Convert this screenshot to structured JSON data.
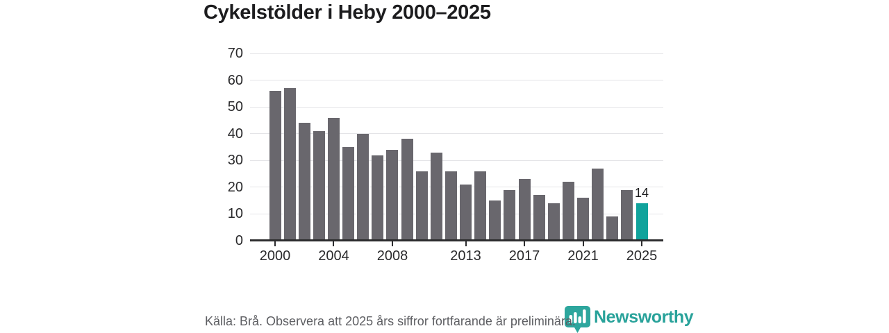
{
  "title": "Cykelstölder i Heby 2000–2025",
  "chart_data": {
    "type": "bar",
    "x": [
      2000,
      2001,
      2002,
      2003,
      2004,
      2005,
      2006,
      2007,
      2008,
      2009,
      2010,
      2011,
      2012,
      2013,
      2014,
      2015,
      2016,
      2017,
      2018,
      2019,
      2020,
      2021,
      2022,
      2023,
      2024,
      2025
    ],
    "values": [
      56,
      57,
      44,
      41,
      46,
      35,
      40,
      32,
      34,
      38,
      26,
      33,
      26,
      21,
      26,
      15,
      19,
      23,
      17,
      14,
      22,
      16,
      27,
      9,
      19,
      14
    ],
    "title": "Cykelstölder i Heby 2000–2025",
    "xlabel": "",
    "ylabel": "",
    "ylim": [
      0,
      70
    ],
    "yticks": [
      0,
      10,
      20,
      30,
      40,
      50,
      60,
      70
    ],
    "xtick_labels": [
      "2000",
      "2004",
      "2008",
      "2013",
      "2017",
      "2021",
      "2025"
    ],
    "xtick_indices": [
      0,
      4,
      8,
      13,
      17,
      21,
      25
    ],
    "grid": "horizontal",
    "legend": "none",
    "bar_color": "#69676d",
    "highlight_index": 25,
    "highlight_color": "#10a39c",
    "annotation": {
      "index": 25,
      "text": "14"
    }
  },
  "footer": {
    "source_text": "Källa: Brå. Observera att 2025 års siffror fortfarande är preliminära."
  },
  "logo": {
    "wordmark": "Newsworthy",
    "color": "#28a29a",
    "icon": "newsworthy-badge-barchart-icon"
  }
}
